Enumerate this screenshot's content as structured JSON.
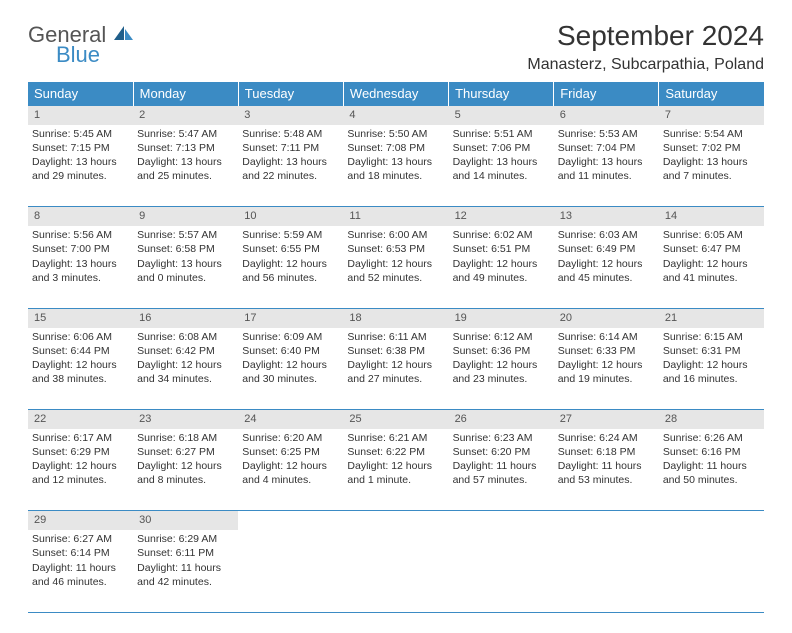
{
  "logo": {
    "text1": "General",
    "text2": "Blue"
  },
  "title": "September 2024",
  "location": "Manasterz, Subcarpathia, Poland",
  "header_color": "#3b8bc4",
  "daybar_color": "#e6e6e6",
  "text_color": "#333333",
  "font_size_title": 28,
  "font_size_location": 16,
  "font_size_header": 13,
  "font_size_cell": 10.5,
  "days_of_week": [
    "Sunday",
    "Monday",
    "Tuesday",
    "Wednesday",
    "Thursday",
    "Friday",
    "Saturday"
  ],
  "weeks": [
    [
      {
        "n": "1",
        "sr": "5:45 AM",
        "ss": "7:15 PM",
        "dl": "13 hours and 29 minutes."
      },
      {
        "n": "2",
        "sr": "5:47 AM",
        "ss": "7:13 PM",
        "dl": "13 hours and 25 minutes."
      },
      {
        "n": "3",
        "sr": "5:48 AM",
        "ss": "7:11 PM",
        "dl": "13 hours and 22 minutes."
      },
      {
        "n": "4",
        "sr": "5:50 AM",
        "ss": "7:08 PM",
        "dl": "13 hours and 18 minutes."
      },
      {
        "n": "5",
        "sr": "5:51 AM",
        "ss": "7:06 PM",
        "dl": "13 hours and 14 minutes."
      },
      {
        "n": "6",
        "sr": "5:53 AM",
        "ss": "7:04 PM",
        "dl": "13 hours and 11 minutes."
      },
      {
        "n": "7",
        "sr": "5:54 AM",
        "ss": "7:02 PM",
        "dl": "13 hours and 7 minutes."
      }
    ],
    [
      {
        "n": "8",
        "sr": "5:56 AM",
        "ss": "7:00 PM",
        "dl": "13 hours and 3 minutes."
      },
      {
        "n": "9",
        "sr": "5:57 AM",
        "ss": "6:58 PM",
        "dl": "13 hours and 0 minutes."
      },
      {
        "n": "10",
        "sr": "5:59 AM",
        "ss": "6:55 PM",
        "dl": "12 hours and 56 minutes."
      },
      {
        "n": "11",
        "sr": "6:00 AM",
        "ss": "6:53 PM",
        "dl": "12 hours and 52 minutes."
      },
      {
        "n": "12",
        "sr": "6:02 AM",
        "ss": "6:51 PM",
        "dl": "12 hours and 49 minutes."
      },
      {
        "n": "13",
        "sr": "6:03 AM",
        "ss": "6:49 PM",
        "dl": "12 hours and 45 minutes."
      },
      {
        "n": "14",
        "sr": "6:05 AM",
        "ss": "6:47 PM",
        "dl": "12 hours and 41 minutes."
      }
    ],
    [
      {
        "n": "15",
        "sr": "6:06 AM",
        "ss": "6:44 PM",
        "dl": "12 hours and 38 minutes."
      },
      {
        "n": "16",
        "sr": "6:08 AM",
        "ss": "6:42 PM",
        "dl": "12 hours and 34 minutes."
      },
      {
        "n": "17",
        "sr": "6:09 AM",
        "ss": "6:40 PM",
        "dl": "12 hours and 30 minutes."
      },
      {
        "n": "18",
        "sr": "6:11 AM",
        "ss": "6:38 PM",
        "dl": "12 hours and 27 minutes."
      },
      {
        "n": "19",
        "sr": "6:12 AM",
        "ss": "6:36 PM",
        "dl": "12 hours and 23 minutes."
      },
      {
        "n": "20",
        "sr": "6:14 AM",
        "ss": "6:33 PM",
        "dl": "12 hours and 19 minutes."
      },
      {
        "n": "21",
        "sr": "6:15 AM",
        "ss": "6:31 PM",
        "dl": "12 hours and 16 minutes."
      }
    ],
    [
      {
        "n": "22",
        "sr": "6:17 AM",
        "ss": "6:29 PM",
        "dl": "12 hours and 12 minutes."
      },
      {
        "n": "23",
        "sr": "6:18 AM",
        "ss": "6:27 PM",
        "dl": "12 hours and 8 minutes."
      },
      {
        "n": "24",
        "sr": "6:20 AM",
        "ss": "6:25 PM",
        "dl": "12 hours and 4 minutes."
      },
      {
        "n": "25",
        "sr": "6:21 AM",
        "ss": "6:22 PM",
        "dl": "12 hours and 1 minute."
      },
      {
        "n": "26",
        "sr": "6:23 AM",
        "ss": "6:20 PM",
        "dl": "11 hours and 57 minutes."
      },
      {
        "n": "27",
        "sr": "6:24 AM",
        "ss": "6:18 PM",
        "dl": "11 hours and 53 minutes."
      },
      {
        "n": "28",
        "sr": "6:26 AM",
        "ss": "6:16 PM",
        "dl": "11 hours and 50 minutes."
      }
    ],
    [
      {
        "n": "29",
        "sr": "6:27 AM",
        "ss": "6:14 PM",
        "dl": "11 hours and 46 minutes."
      },
      {
        "n": "30",
        "sr": "6:29 AM",
        "ss": "6:11 PM",
        "dl": "11 hours and 42 minutes."
      },
      null,
      null,
      null,
      null,
      null
    ]
  ],
  "labels": {
    "sunrise": "Sunrise:",
    "sunset": "Sunset:",
    "daylight": "Daylight:"
  }
}
